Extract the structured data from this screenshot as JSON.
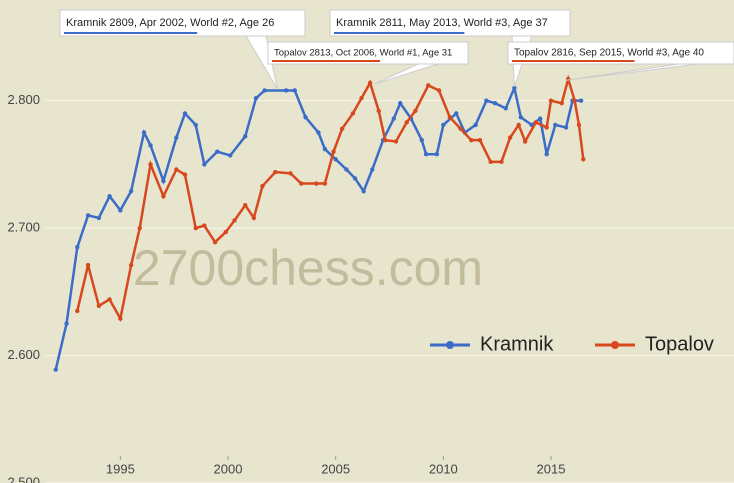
{
  "chart_data": {
    "type": "line",
    "watermark": "2700chess.com",
    "xlim": [
      1991.5,
      2023.5
    ],
    "xticks": [
      1995,
      2000,
      2005,
      2010,
      2015
    ],
    "ylim": [
      2500,
      2879
    ],
    "yticks": [
      {
        "value": 2500,
        "label": "2.500"
      },
      {
        "value": 2600,
        "label": "2.600"
      },
      {
        "value": 2700,
        "label": "2.700"
      },
      {
        "value": 2800,
        "label": "2.800"
      }
    ],
    "grid": true,
    "legend": "lower right",
    "series": [
      {
        "name": "Kramnik",
        "color": "#3a6cc8",
        "x": [
          1992.0,
          1992.5,
          1993.0,
          1993.5,
          1994.0,
          1994.5,
          1995.0,
          1995.5,
          1996.1,
          1996.4,
          1997.0,
          1997.6,
          1998.0,
          1998.5,
          1998.9,
          1999.5,
          2000.1,
          2000.8,
          2001.3,
          2001.7,
          2002.7,
          2003.1,
          2003.6,
          2004.2,
          2004.5,
          2005.0,
          2005.5,
          2005.9,
          2006.3,
          2006.7,
          2007.2,
          2007.7,
          2008.0,
          2008.5,
          2009.0,
          2009.2,
          2009.7,
          2010.0,
          2010.6,
          2011.0,
          2011.5,
          2012.0,
          2012.4,
          2012.9,
          2013.3,
          2013.6,
          2014.1,
          2014.5,
          2014.8,
          2015.2,
          2015.7,
          2016.0,
          2016.4
        ],
        "values": [
          2589,
          2625,
          2685,
          2710,
          2708,
          2725,
          2714,
          2729,
          2775,
          2765,
          2737,
          2771,
          2790,
          2781,
          2750,
          2760,
          2757,
          2772,
          2802,
          2808,
          2808,
          2808,
          2787,
          2775,
          2762,
          2754,
          2746,
          2739,
          2729,
          2746,
          2769,
          2786,
          2798,
          2786,
          2769,
          2758,
          2758,
          2781,
          2790,
          2775,
          2781,
          2800,
          2798,
          2794,
          2810,
          2787,
          2781,
          2786,
          2758,
          2781,
          2779,
          2800,
          2800
        ]
      },
      {
        "name": "Topalov",
        "color": "#d8481e",
        "x": [
          1993.0,
          1993.5,
          1994.0,
          1994.5,
          1995.0,
          1995.5,
          1995.9,
          1996.4,
          1997.0,
          1997.6,
          1998.0,
          1998.5,
          1998.9,
          1999.4,
          1999.9,
          2000.3,
          2000.8,
          2001.2,
          2001.6,
          2002.2,
          2002.9,
          2003.4,
          2004.1,
          2004.5,
          2004.9,
          2005.3,
          2005.8,
          2006.2,
          2006.6,
          2007.0,
          2007.3,
          2007.8,
          2008.3,
          2008.7,
          2009.3,
          2009.8,
          2010.3,
          2010.8,
          2011.3,
          2011.7,
          2012.2,
          2012.7,
          2013.1,
          2013.5,
          2013.8,
          2014.3,
          2014.8,
          2015.0,
          2015.5,
          2015.8,
          2016.1,
          2016.3,
          2016.5
        ],
        "values": [
          2635,
          2671,
          2639,
          2644,
          2629,
          2671,
          2700,
          2750,
          2725,
          2746,
          2742,
          2700,
          2702,
          2689,
          2697,
          2706,
          2718,
          2708,
          2733,
          2744,
          2743,
          2735,
          2735,
          2735,
          2760,
          2778,
          2790,
          2802,
          2814,
          2792,
          2769,
          2768,
          2783,
          2792,
          2812,
          2808,
          2787,
          2778,
          2769,
          2769,
          2752,
          2752,
          2771,
          2781,
          2768,
          2783,
          2779,
          2800,
          2798,
          2817,
          2800,
          2781,
          2754
        ]
      }
    ],
    "annotations": [
      {
        "text": "Kramnik 2809, Apr 2002, World #2, Age 26",
        "x": 2002.3,
        "y": 2809,
        "color": "#3a6cc8"
      },
      {
        "text": "Topalov 2813, Oct 2006, World #1, Age 31",
        "x": 2006.8,
        "y": 2813,
        "color": "#d8481e"
      },
      {
        "text": "Kramnik 2811, May 2013, World #3, Age 37",
        "x": 2013.3,
        "y": 2811,
        "color": "#3a6cc8"
      },
      {
        "text": "Topalov 2816, Sep 2015, World #3, Age 40",
        "x": 2015.7,
        "y": 2816,
        "color": "#d8481e"
      }
    ]
  }
}
